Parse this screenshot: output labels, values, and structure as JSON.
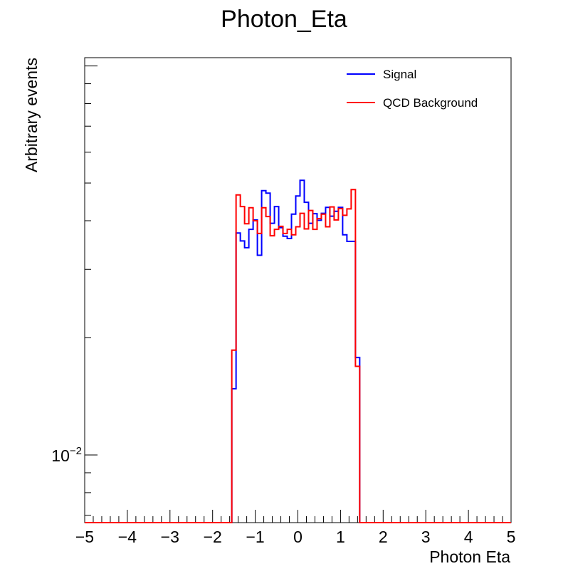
{
  "chart_data": {
    "type": "histogram",
    "title": "Photon_Eta",
    "xlabel": "Photon Eta",
    "ylabel": "Arbitrary events",
    "xlim": [
      -5,
      5
    ],
    "ylim": [
      0.0067,
      0.105
    ],
    "yscale": "log",
    "x_tick_labels": [
      "−5",
      "−4",
      "−3",
      "−2",
      "−1",
      "0",
      "1",
      "2",
      "3",
      "4",
      "5"
    ],
    "y_tick_label": {
      "base": "10",
      "exponent": "−2"
    },
    "bin_width": 0.1,
    "grid": false,
    "legend_position": "top-right",
    "series": [
      {
        "name": "Signal",
        "color": "#0000ff",
        "x": [
          -1.6,
          -1.5,
          -1.4,
          -1.3,
          -1.2,
          -1.1,
          -1.0,
          -0.9,
          -0.8,
          -0.7,
          -0.6,
          -0.5,
          -0.4,
          -0.3,
          -0.2,
          -0.1,
          0.0,
          0.1,
          0.2,
          0.3,
          0.4,
          0.5,
          0.6,
          0.7,
          0.8,
          0.9,
          1.0,
          1.1,
          1.2,
          1.3,
          1.4,
          1.5
        ],
        "values": [
          0.0,
          0.0148,
          0.0372,
          0.0355,
          0.0341,
          0.038,
          0.0402,
          0.0326,
          0.0478,
          0.0471,
          0.0394,
          0.0435,
          0.0384,
          0.0365,
          0.036,
          0.0416,
          0.0463,
          0.0508,
          0.0446,
          0.0394,
          0.0417,
          0.0401,
          0.0418,
          0.0433,
          0.0411,
          0.0423,
          0.0433,
          0.0368,
          0.0354,
          0.0354,
          0.0178,
          0.0
        ]
      },
      {
        "name": "QCD Background",
        "color": "#ff0000",
        "x": [
          -1.6,
          -1.5,
          -1.4,
          -1.3,
          -1.2,
          -1.1,
          -1.0,
          -0.9,
          -0.8,
          -0.7,
          -0.6,
          -0.5,
          -0.4,
          -0.3,
          -0.2,
          -0.1,
          0.0,
          0.1,
          0.2,
          0.3,
          0.4,
          0.5,
          0.6,
          0.7,
          0.8,
          0.9,
          1.0,
          1.1,
          1.2,
          1.3,
          1.4,
          1.5
        ],
        "values": [
          0.0,
          0.0186,
          0.0466,
          0.0435,
          0.0393,
          0.0432,
          0.04,
          0.0371,
          0.0432,
          0.041,
          0.0366,
          0.038,
          0.0387,
          0.0371,
          0.038,
          0.0368,
          0.0386,
          0.0418,
          0.0381,
          0.0425,
          0.038,
          0.0405,
          0.0416,
          0.0386,
          0.0434,
          0.0402,
          0.043,
          0.0413,
          0.0429,
          0.0481,
          0.0169,
          0.0
        ]
      }
    ]
  }
}
